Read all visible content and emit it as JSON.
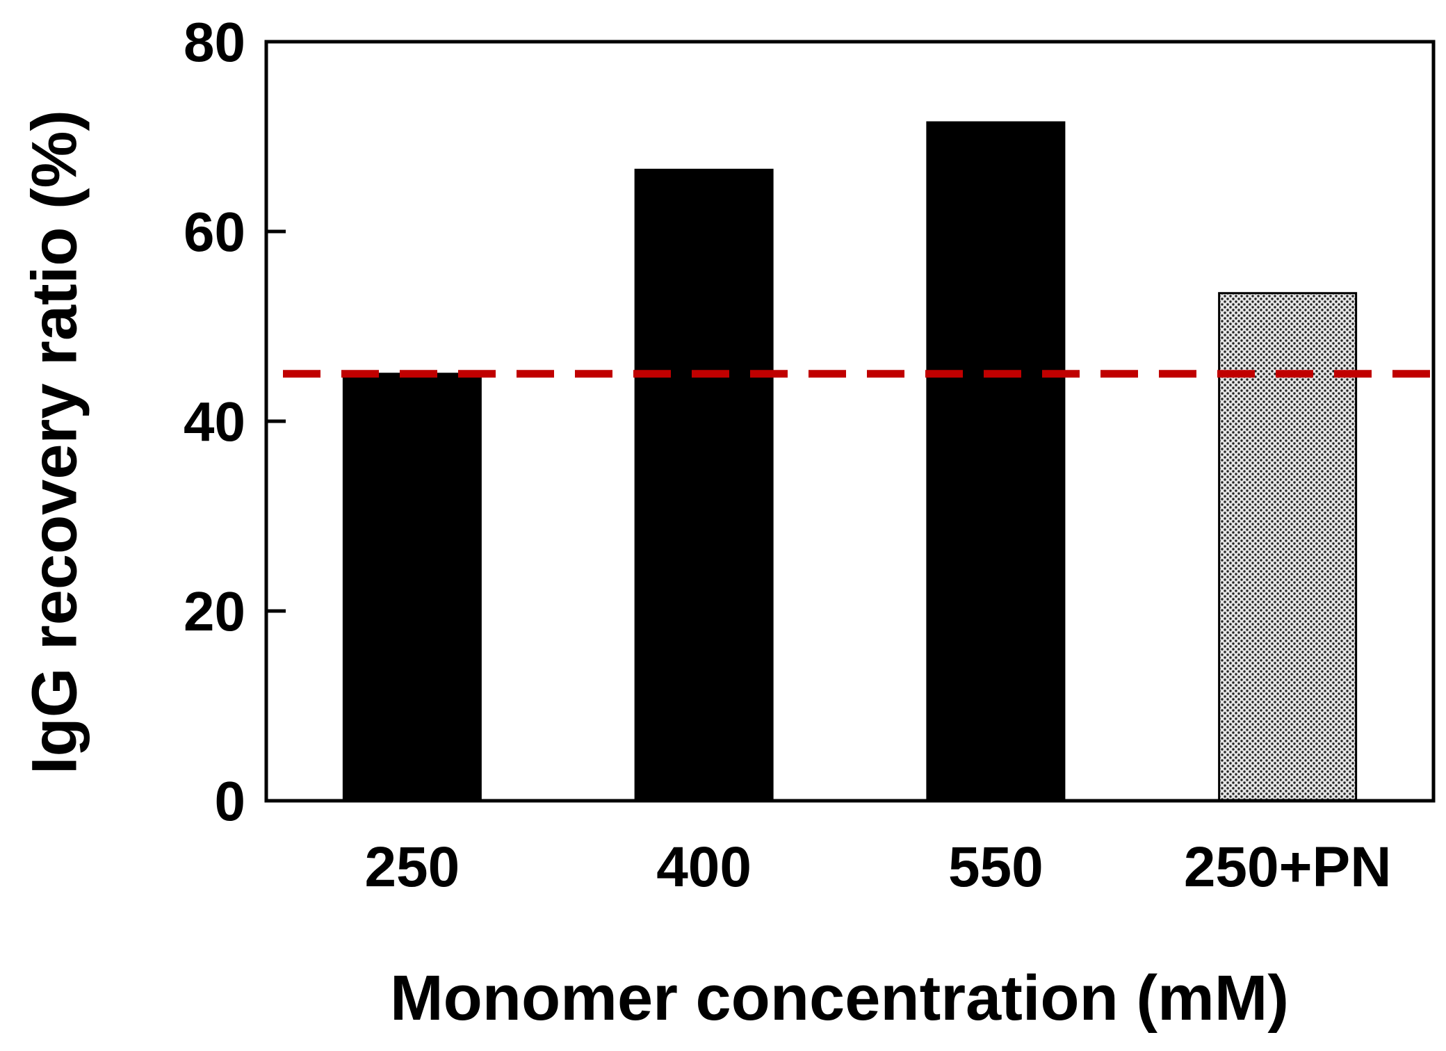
{
  "chart_data": {
    "type": "bar",
    "title": "",
    "xlabel": "Monomer concentration (mM)",
    "ylabel": "IgG recovery ratio (%)",
    "categories": [
      "250",
      "400",
      "550",
      "250+PN"
    ],
    "values": [
      45,
      66.5,
      71.5,
      53.5
    ],
    "bar_styles": [
      "solid",
      "solid",
      "solid",
      "dotted"
    ],
    "ylim": [
      0,
      80
    ],
    "yticks": [
      0,
      20,
      40,
      60,
      80
    ],
    "grid": false,
    "reference_line": {
      "value": 45,
      "style": "dashed",
      "color": "#c00000"
    }
  },
  "colors": {
    "bar_fill": "#000000",
    "dotted_bar_background": "#e6e6e6",
    "dotted_bar_dots": "#222222",
    "axis": "#000000",
    "reference_line": "#c00000"
  }
}
